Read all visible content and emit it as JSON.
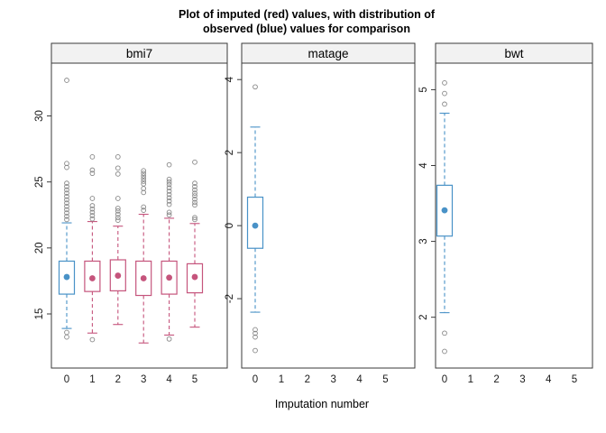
{
  "chart_data": {
    "type": "boxplot",
    "title_lines": [
      "Plot of imputed (red) values, with distribution of",
      "observed (blue) values for comparison"
    ],
    "xlabel": "Imputation number",
    "ylabel": "",
    "x_categories": [
      "0",
      "1",
      "2",
      "3",
      "4",
      "5"
    ],
    "legend_semantics": {
      "observed": "blue",
      "imputed": "red"
    },
    "colors": {
      "observed": "#4992c7",
      "imputed": "#c5547c",
      "outlier": "#878787",
      "strip_bg": "#f2f2f2",
      "panel_border": "#3a3a3a",
      "background": "#ffffff"
    },
    "panels": [
      {
        "name": "bmi7",
        "ylim": [
          10.9,
          34.0
        ],
        "yticks": [
          "15",
          "20",
          "25",
          "30"
        ],
        "boxes": [
          {
            "x": "0",
            "group": "observed",
            "whisker_low": 13.9,
            "q1": 16.5,
            "median": 17.8,
            "q3": 19.0,
            "whisker_high": 21.9,
            "outliers_low": [
              13.6,
              13.25
            ],
            "outliers_high": [
              32.7,
              26.4,
              26.1,
              24.9,
              24.65,
              24.4,
              24.15,
              23.9,
              23.65,
              23.4,
              23.15,
              22.9,
              22.65,
              22.4,
              22.15
            ]
          },
          {
            "x": "1",
            "group": "imputed",
            "whisker_low": 13.55,
            "q1": 16.7,
            "median": 17.7,
            "q3": 19.0,
            "whisker_high": 22.0,
            "outliers_low": [
              13.05
            ],
            "outliers_high": [
              26.9,
              25.9,
              25.65,
              23.75,
              23.2,
              22.95,
              22.7,
              22.45,
              22.2
            ]
          },
          {
            "x": "2",
            "group": "imputed",
            "whisker_low": 14.2,
            "q1": 16.75,
            "median": 17.9,
            "q3": 19.1,
            "whisker_high": 21.65,
            "outliers_low": [],
            "outliers_high": [
              26.9,
              26.05,
              25.6,
              23.75,
              23.0,
              22.8,
              22.55,
              22.3,
              22.1
            ]
          },
          {
            "x": "3",
            "group": "imputed",
            "whisker_low": 12.8,
            "q1": 16.4,
            "median": 17.7,
            "q3": 19.0,
            "whisker_high": 22.55,
            "outliers_low": [],
            "outliers_high": [
              25.85,
              25.65,
              25.45,
              25.25,
              25.05,
              24.85,
              24.5,
              24.2,
              23.1,
              22.85
            ]
          },
          {
            "x": "4",
            "group": "imputed",
            "whisker_low": 13.4,
            "q1": 16.5,
            "median": 17.75,
            "q3": 19.0,
            "whisker_high": 22.25,
            "outliers_low": [
              13.1
            ],
            "outliers_high": [
              26.3,
              25.2,
              25.0,
              24.8,
              24.55,
              24.3,
              24.05,
              23.8,
              23.55,
              23.3,
              22.7,
              22.5
            ]
          },
          {
            "x": "5",
            "group": "imputed",
            "whisker_low": 14.0,
            "q1": 16.6,
            "median": 17.8,
            "q3": 18.8,
            "whisker_high": 21.85,
            "outliers_low": [],
            "outliers_high": [
              26.5,
              24.9,
              24.65,
              24.4,
              24.15,
              23.95,
              23.7,
              23.45,
              23.25,
              22.3,
              22.15
            ]
          }
        ]
      },
      {
        "name": "matage",
        "ylim": [
          -3.9,
          4.45
        ],
        "yticks": [
          "-2",
          "0",
          "2",
          "4"
        ],
        "boxes": [
          {
            "x": "0",
            "group": "observed",
            "whisker_low": -2.37,
            "q1": -0.62,
            "median": 0.0,
            "q3": 0.78,
            "whisker_high": 2.7,
            "outliers_low": [
              -2.85,
              -2.95,
              -3.05,
              -3.42
            ],
            "outliers_high": [
              3.8
            ]
          }
        ]
      },
      {
        "name": "bwt",
        "ylim": [
          1.33,
          5.35
        ],
        "yticks": [
          "2",
          "3",
          "4",
          "5"
        ],
        "boxes": [
          {
            "x": "0",
            "group": "observed",
            "whisker_low": 2.06,
            "q1": 3.07,
            "median": 3.41,
            "q3": 3.74,
            "whisker_high": 4.69,
            "outliers_low": [
              1.79,
              1.55
            ],
            "outliers_high": [
              5.09,
              4.95,
              4.81
            ]
          }
        ]
      }
    ]
  }
}
